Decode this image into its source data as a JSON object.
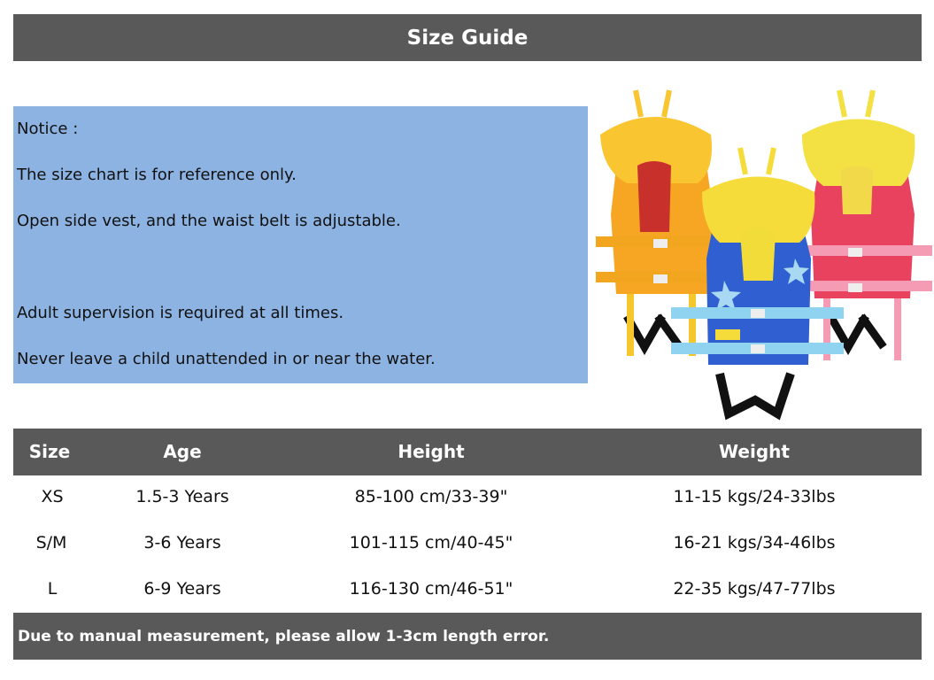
{
  "title": "Size Guide",
  "notice": {
    "heading": "Notice :",
    "lines": [
      "The size chart is for reference only.",
      "Open side vest, and the waist belt is adjustable.",
      "Adult supervision is required at all times.",
      "Never leave a child unattended in or near the water."
    ]
  },
  "image": {
    "vests": [
      {
        "color": "#f6a623",
        "collar": "#f9c531",
        "accent": "#e7452a"
      },
      {
        "color": "#2f5fd0",
        "collar": "#f6dc3a",
        "accent": "#8fd3f0"
      },
      {
        "color": "#e8425f",
        "collar": "#f3e042",
        "accent": "#f59bb4"
      }
    ]
  },
  "table": {
    "headers": [
      "Size",
      "Age",
      "Height",
      "Weight"
    ],
    "rows": [
      [
        "XS",
        "1.5-3 Years",
        "85-100 cm/33-39\"",
        "11-15 kgs/24-33lbs"
      ],
      [
        "S/M",
        "3-6 Years",
        "101-115 cm/40-45\"",
        "16-21 kgs/34-46lbs"
      ],
      [
        "L",
        "6-9 Years",
        "116-130 cm/46-51\"",
        "22-35 kgs/47-77lbs"
      ]
    ]
  },
  "footer": "Due to manual measurement, please allow 1-3cm length error."
}
